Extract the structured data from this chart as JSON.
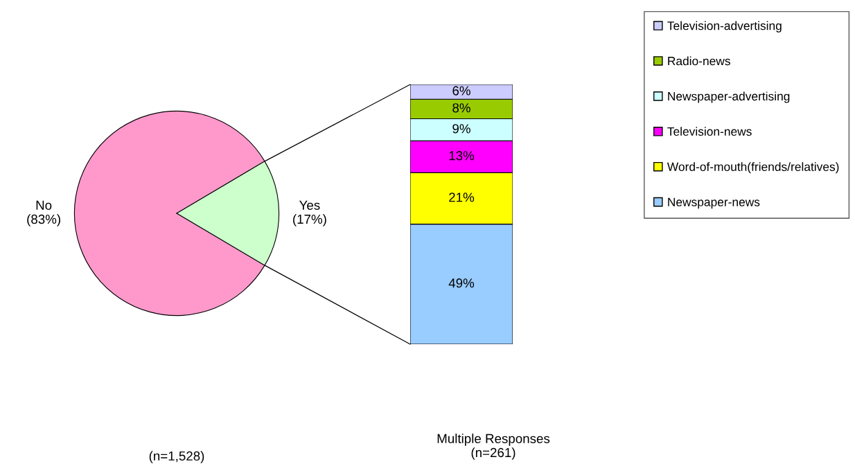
{
  "chart_data": [
    {
      "type": "pie",
      "categories": [
        "No",
        "Yes"
      ],
      "values": [
        83,
        17
      ],
      "colors": [
        "#ff99cc",
        "#ccffcc"
      ],
      "value_labels": [
        "(83%)",
        "(17%)"
      ],
      "annotations": [
        "(n=1,528)"
      ]
    },
    {
      "type": "bar",
      "stacked": true,
      "categories": [
        null
      ],
      "legend": "right",
      "annotations": [
        "Multiple Responses\n(n=261)"
      ],
      "series": [
        {
          "name": "Newspaper-news",
          "color": "#99ccff",
          "values": [
            49
          ],
          "value_labels": [
            "49%"
          ]
        },
        {
          "name": "Word-of-mouth(friends/relatives)",
          "color": "#ffff00",
          "values": [
            21
          ],
          "value_labels": [
            "21%"
          ]
        },
        {
          "name": "Television-news",
          "color": "#ff00ff",
          "values": [
            13
          ],
          "value_labels": [
            "13%"
          ]
        },
        {
          "name": "Newspaper-advertising",
          "color": "#ccffff",
          "values": [
            9
          ],
          "value_labels": [
            "9%"
          ]
        },
        {
          "name": "Radio-news",
          "color": "#99cc00",
          "values": [
            8
          ],
          "value_labels": [
            "8%"
          ]
        },
        {
          "name": "Television-advertising",
          "color": "#ccccff",
          "values": [
            6
          ],
          "value_labels": [
            "6%"
          ]
        }
      ]
    }
  ]
}
